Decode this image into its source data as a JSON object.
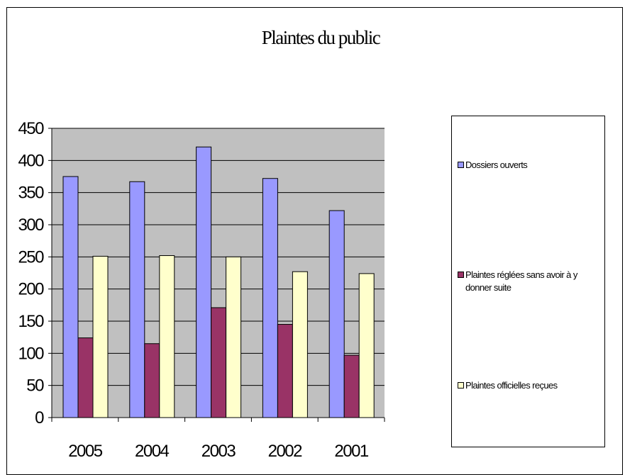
{
  "chart_data": {
    "type": "bar",
    "title": "Plaintes du public",
    "categories": [
      "2005",
      "2004",
      "2003",
      "2002",
      "2001"
    ],
    "series": [
      {
        "name": "Dossiers ouverts",
        "values": [
          375,
          367,
          421,
          372,
          322
        ],
        "color": "#9999ff"
      },
      {
        "name": "Plaintes réglées sans avoir à y donner suite",
        "values": [
          124,
          115,
          171,
          145,
          97
        ],
        "color": "#993366"
      },
      {
        "name": "Plaintes officielles reçues",
        "values": [
          251,
          252,
          250,
          227,
          224
        ],
        "color": "#ffffcc"
      }
    ],
    "yticks": [
      "0",
      "50",
      "100",
      "150",
      "200",
      "250",
      "300",
      "350",
      "400",
      "450"
    ],
    "ylim": [
      0,
      450
    ],
    "grid": true,
    "plot_background": "#c0c0c0",
    "legend_position": "right"
  }
}
